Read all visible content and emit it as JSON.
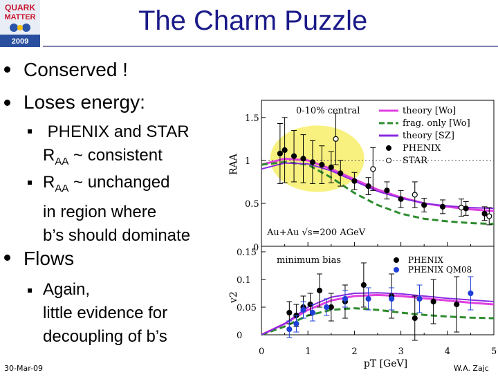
{
  "slide": {
    "title": "The Charm Puzzle",
    "logo_lines": [
      "QUARK",
      "MATTER",
      "2009"
    ],
    "bullets": {
      "b1": "Conserved !",
      "b2": "Loses energy:",
      "sub1_line1": "PHENIX and STAR",
      "sub1_line2_prefix": "R",
      "sub1_line2_sub": "AA",
      "sub1_line2_rest": " ~ consistent",
      "sub2_line1_prefix": "R",
      "sub2_line1_sub": "AA",
      "sub2_line1_rest": " ~ unchanged",
      "sub2_line2": "in region where",
      "sub2_line3": "b’s should dominate",
      "b3": "Flows",
      "sub3_line1": "Again,",
      "sub3_line2": "little evidence for",
      "sub3_line3": "decoupling of b’s"
    },
    "footer_date": "30-Mar-09",
    "footer_author": "W.A. Zajc"
  },
  "chart_data": [
    {
      "type": "scatter",
      "panel": "top",
      "ylabel": "R_AA",
      "ylim": [
        0,
        1.7
      ],
      "xlim": [
        0,
        5
      ],
      "annotation_top": "0-10% central",
      "annotation_bottom": "Au+Au √s=200 AGeV",
      "yticks": [
        "0",
        "0.5",
        "1",
        "1.5"
      ],
      "legend": [
        {
          "label": "theory [Wo]",
          "color": "#e040e0",
          "style": "line"
        },
        {
          "label": "frag. only [Wo]",
          "color": "#2e8b2e",
          "style": "dashed"
        },
        {
          "label": "theory [SZ]",
          "color": "#8a2be2",
          "style": "line"
        },
        {
          "label": "PHENIX",
          "color": "#000000",
          "style": "filled"
        },
        {
          "label": "STAR",
          "color": "#000000",
          "style": "open"
        }
      ],
      "series": [
        {
          "name": "PHENIX",
          "x": [
            0.4,
            0.5,
            0.7,
            0.9,
            1.1,
            1.3,
            1.5,
            1.7,
            2.0,
            2.3,
            2.7,
            3.0,
            3.5,
            3.9,
            4.4,
            4.8
          ],
          "y": [
            1.08,
            1.12,
            1.05,
            1.02,
            0.98,
            0.95,
            0.92,
            0.85,
            0.76,
            0.7,
            0.65,
            0.55,
            0.48,
            0.46,
            0.44,
            0.38
          ],
          "err": [
            0.35,
            0.38,
            0.3,
            0.28,
            0.25,
            0.22,
            0.18,
            0.15,
            0.1,
            0.1,
            0.1,
            0.1,
            0.08,
            0.08,
            0.08,
            0.08
          ]
        },
        {
          "name": "STAR",
          "x": [
            1.6,
            2.4,
            3.3,
            4.3,
            4.9
          ],
          "y": [
            1.25,
            0.9,
            0.6,
            0.45,
            0.35
          ],
          "err": [
            0.3,
            0.25,
            0.15,
            0.1,
            0.1
          ]
        },
        {
          "name": "theory [Wo]",
          "x": [
            0,
            0.5,
            1,
            1.5,
            2,
            2.5,
            3,
            3.5,
            4,
            4.5,
            5
          ],
          "y": [
            0.95,
            1.02,
            1.0,
            0.9,
            0.78,
            0.66,
            0.57,
            0.5,
            0.46,
            0.43,
            0.41
          ]
        },
        {
          "name": "frag. only [Wo]",
          "x": [
            0,
            0.5,
            1,
            1.5,
            2,
            2.5,
            3,
            3.5,
            4,
            4.5,
            5
          ],
          "y": [
            0.95,
            0.98,
            0.95,
            0.8,
            0.62,
            0.48,
            0.38,
            0.32,
            0.29,
            0.27,
            0.26
          ]
        },
        {
          "name": "theory [SZ]",
          "x": [
            0,
            0.5,
            1,
            1.5,
            2,
            2.5,
            3,
            3.5,
            4,
            4.5,
            5
          ],
          "y": [
            0.9,
            0.97,
            0.96,
            0.88,
            0.76,
            0.64,
            0.56,
            0.5,
            0.47,
            0.45,
            0.44
          ]
        }
      ],
      "highlight_color": "#f7ef6a"
    },
    {
      "type": "scatter",
      "panel": "bottom",
      "ylabel": "v_2",
      "xlabel": "p_T [GeV]",
      "ylim": [
        0,
        0.16
      ],
      "xlim": [
        0,
        5
      ],
      "annotation_top": "minimum bias",
      "yticks": [
        "0",
        "0.05",
        "0.1",
        "0.15"
      ],
      "xticks": [
        "0",
        "0.5",
        "1",
        "1.5",
        "2",
        "2.5",
        "3",
        "3.5",
        "4",
        "4.5",
        "5"
      ],
      "legend": [
        {
          "label": "PHENIX",
          "color": "#000000"
        },
        {
          "label": "PHENIX QM08",
          "color": "#1f3fd6"
        }
      ],
      "series": [
        {
          "name": "PHENIX",
          "x": [
            0.6,
            0.75,
            0.9,
            1.05,
            1.25,
            1.5,
            1.8,
            2.2,
            2.8,
            3.3,
            3.7,
            4.2
          ],
          "y": [
            0.04,
            0.035,
            0.05,
            0.055,
            0.08,
            0.05,
            0.06,
            0.09,
            0.07,
            0.03,
            0.06,
            0.055
          ],
          "err": [
            0.02,
            0.02,
            0.02,
            0.02,
            0.03,
            0.025,
            0.03,
            0.04,
            0.04,
            0.04,
            0.04,
            0.05
          ]
        },
        {
          "name": "PHENIX QM08",
          "x": [
            0.6,
            0.75,
            0.9,
            1.1,
            1.4,
            1.8,
            2.3,
            2.8,
            3.4,
            4.5
          ],
          "y": [
            0.01,
            0.02,
            0.045,
            0.04,
            0.05,
            0.065,
            0.065,
            0.065,
            0.065,
            0.075
          ],
          "err": [
            0.015,
            0.015,
            0.015,
            0.015,
            0.015,
            0.015,
            0.02,
            0.02,
            0.025,
            0.03
          ]
        },
        {
          "name": "theory [Wo]",
          "x": [
            0,
            0.5,
            1,
            1.5,
            2,
            2.5,
            3,
            3.5,
            4,
            4.5,
            5
          ],
          "y": [
            0,
            0.02,
            0.045,
            0.062,
            0.07,
            0.072,
            0.07,
            0.066,
            0.062,
            0.058,
            0.055
          ]
        },
        {
          "name": "frag. only [Wo]",
          "x": [
            0,
            0.5,
            1,
            1.5,
            2,
            2.5,
            3,
            3.5,
            4,
            4.5,
            5
          ],
          "y": [
            0,
            0.015,
            0.035,
            0.045,
            0.048,
            0.045,
            0.04,
            0.036,
            0.033,
            0.031,
            0.03
          ]
        },
        {
          "name": "theory [SZ]",
          "x": [
            0,
            0.5,
            1,
            1.5,
            2,
            2.5,
            3,
            3.5,
            4,
            4.5,
            5
          ],
          "y": [
            0,
            0.02,
            0.05,
            0.068,
            0.075,
            0.076,
            0.074,
            0.07,
            0.066,
            0.063,
            0.06
          ]
        }
      ]
    }
  ]
}
